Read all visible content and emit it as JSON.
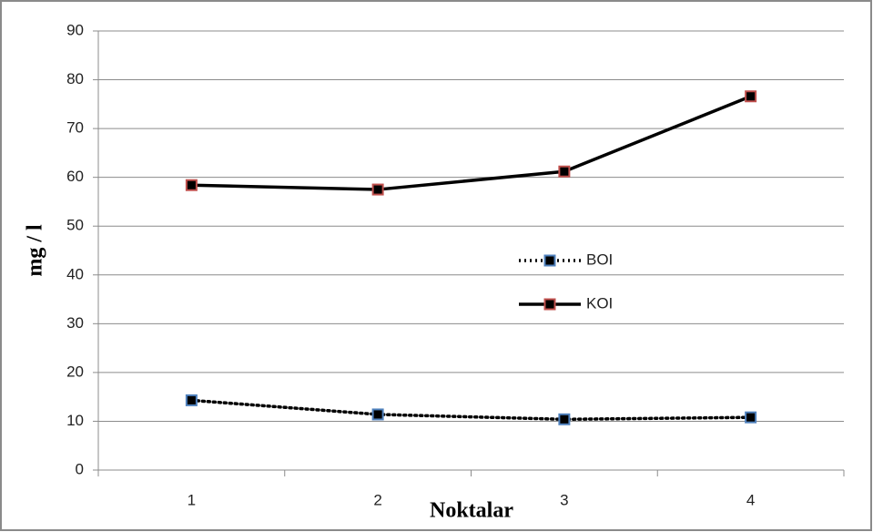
{
  "chart_data": {
    "type": "line",
    "x_label": "Noktalar",
    "y_label": "mg / l",
    "categories": [
      "1",
      "2",
      "3",
      "4"
    ],
    "series": [
      {
        "name": "BOI",
        "color": "#000000",
        "marker_edge_color": "#4f81bd",
        "line_style": "dotted",
        "values": [
          14.3,
          11.4,
          10.4,
          10.8
        ]
      },
      {
        "name": "KOI",
        "color": "#000000",
        "marker_edge_color": "#c0504d",
        "line_style": "solid",
        "values": [
          58.4,
          57.5,
          61.2,
          76.6
        ]
      }
    ],
    "ylim": [
      0,
      90
    ],
    "yticks": [
      0,
      10,
      20,
      30,
      40,
      50,
      60,
      70,
      80,
      90
    ],
    "grid": true,
    "legend": "center"
  }
}
